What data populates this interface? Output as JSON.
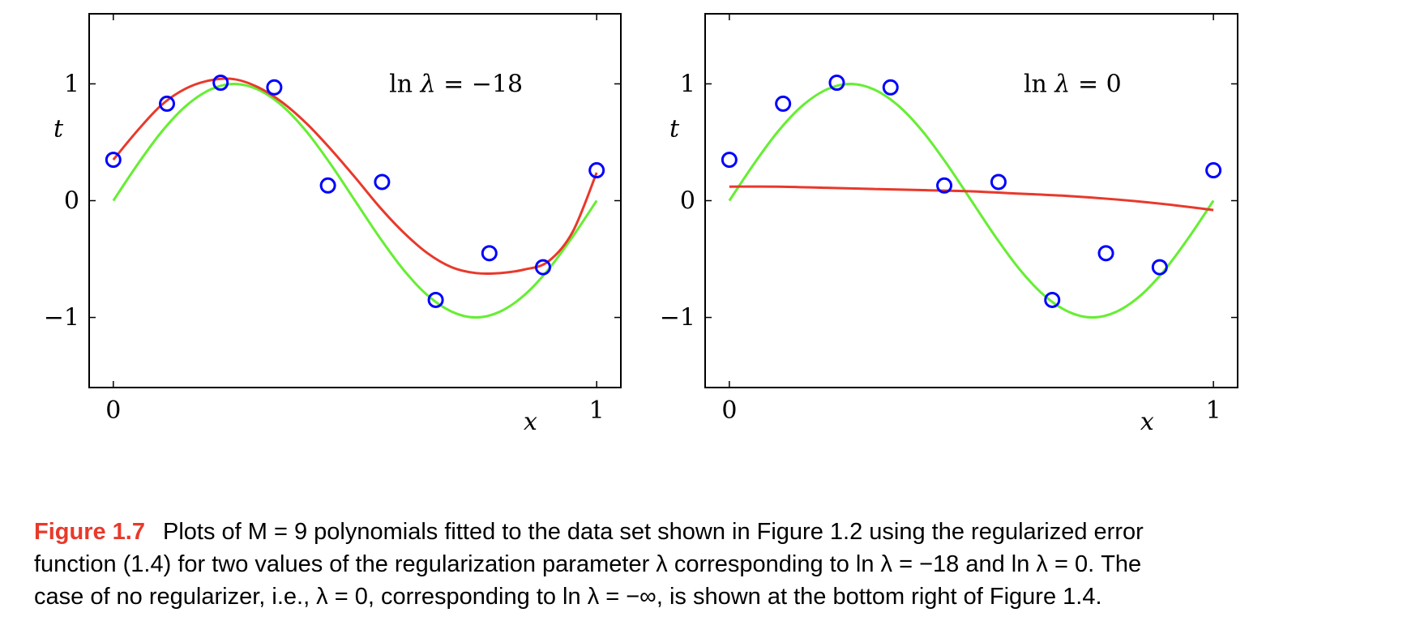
{
  "chart_data": [
    {
      "type": "line",
      "annotation": {
        "prefix": "ln ",
        "symbol": "λ",
        "op": " = ",
        "value": "−18"
      },
      "xlabel": "x",
      "ylabel": "t",
      "xlim": [
        -0.05,
        1.05
      ],
      "ylim": [
        -1.6,
        1.6
      ],
      "xticks": [
        {
          "value": 0,
          "label": "0"
        },
        {
          "value": 1,
          "label": "1"
        }
      ],
      "yticks": [
        {
          "value": -1,
          "label": "−1"
        },
        {
          "value": 0,
          "label": "0"
        },
        {
          "value": 1,
          "label": "1"
        }
      ],
      "grid": false,
      "series": [
        {
          "kind": "points",
          "color": "#0000ff",
          "x": [
            0,
            0.111,
            0.222,
            0.333,
            0.444,
            0.556,
            0.667,
            0.778,
            0.889,
            1.0
          ],
          "y": [
            0.35,
            0.83,
            1.01,
            0.97,
            0.13,
            0.16,
            -0.85,
            -0.45,
            -0.57,
            0.26
          ]
        },
        {
          "kind": "curve",
          "color": "#66ee33",
          "x": [
            0,
            0.05,
            0.1,
            0.15,
            0.2,
            0.25,
            0.3,
            0.35,
            0.4,
            0.45,
            0.5,
            0.55,
            0.6,
            0.65,
            0.7,
            0.75,
            0.8,
            0.85,
            0.9,
            0.95,
            1.0
          ],
          "y": [
            0,
            0.31,
            0.59,
            0.81,
            0.95,
            1.0,
            0.95,
            0.81,
            0.59,
            0.31,
            0,
            -0.31,
            -0.59,
            -0.81,
            -0.95,
            -1.0,
            -0.95,
            -0.81,
            -0.59,
            -0.31,
            0
          ]
        },
        {
          "kind": "curve",
          "color": "#e8392b",
          "x": [
            0,
            0.05,
            0.1,
            0.15,
            0.2,
            0.25,
            0.3,
            0.35,
            0.4,
            0.45,
            0.5,
            0.55,
            0.6,
            0.65,
            0.7,
            0.75,
            0.8,
            0.85,
            0.9,
            0.95,
            1.0
          ],
          "y": [
            0.35,
            0.6,
            0.82,
            0.96,
            1.03,
            1.04,
            0.97,
            0.84,
            0.66,
            0.44,
            0.2,
            -0.05,
            -0.27,
            -0.45,
            -0.57,
            -0.62,
            -0.62,
            -0.59,
            -0.52,
            -0.27,
            0.24
          ]
        }
      ]
    },
    {
      "type": "line",
      "annotation": {
        "prefix": "ln ",
        "symbol": "λ",
        "op": " = ",
        "value": "0"
      },
      "xlabel": "x",
      "ylabel": "t",
      "xlim": [
        -0.05,
        1.05
      ],
      "ylim": [
        -1.6,
        1.6
      ],
      "xticks": [
        {
          "value": 0,
          "label": "0"
        },
        {
          "value": 1,
          "label": "1"
        }
      ],
      "yticks": [
        {
          "value": -1,
          "label": "−1"
        },
        {
          "value": 0,
          "label": "0"
        },
        {
          "value": 1,
          "label": "1"
        }
      ],
      "grid": false,
      "series": [
        {
          "kind": "points",
          "color": "#0000ff",
          "x": [
            0,
            0.111,
            0.222,
            0.333,
            0.444,
            0.556,
            0.667,
            0.778,
            0.889,
            1.0
          ],
          "y": [
            0.35,
            0.83,
            1.01,
            0.97,
            0.13,
            0.16,
            -0.85,
            -0.45,
            -0.57,
            0.26
          ]
        },
        {
          "kind": "curve",
          "color": "#66ee33",
          "x": [
            0,
            0.05,
            0.1,
            0.15,
            0.2,
            0.25,
            0.3,
            0.35,
            0.4,
            0.45,
            0.5,
            0.55,
            0.6,
            0.65,
            0.7,
            0.75,
            0.8,
            0.85,
            0.9,
            0.95,
            1.0
          ],
          "y": [
            0,
            0.31,
            0.59,
            0.81,
            0.95,
            1.0,
            0.95,
            0.81,
            0.59,
            0.31,
            0,
            -0.31,
            -0.59,
            -0.81,
            -0.95,
            -1.0,
            -0.95,
            -0.81,
            -0.59,
            -0.31,
            0
          ]
        },
        {
          "kind": "curve",
          "color": "#e8392b",
          "x": [
            0,
            0.1,
            0.2,
            0.3,
            0.4,
            0.5,
            0.6,
            0.7,
            0.8,
            0.9,
            1.0
          ],
          "y": [
            0.12,
            0.12,
            0.11,
            0.1,
            0.09,
            0.08,
            0.06,
            0.04,
            0.01,
            -0.03,
            -0.08
          ]
        }
      ]
    }
  ],
  "caption": {
    "figure_number": "Figure 1.7",
    "line1": "Plots of M = 9 polynomials fitted to the data set shown in Figure 1.2 using the regularized error",
    "line2": "function (1.4) for two values of the regularization parameter λ corresponding to ln λ = −18 and ln λ = 0. The",
    "line3": "case of no regularizer, i.e., λ = 0, corresponding to ln λ = −∞, is shown at the bottom right of Figure 1.4."
  }
}
